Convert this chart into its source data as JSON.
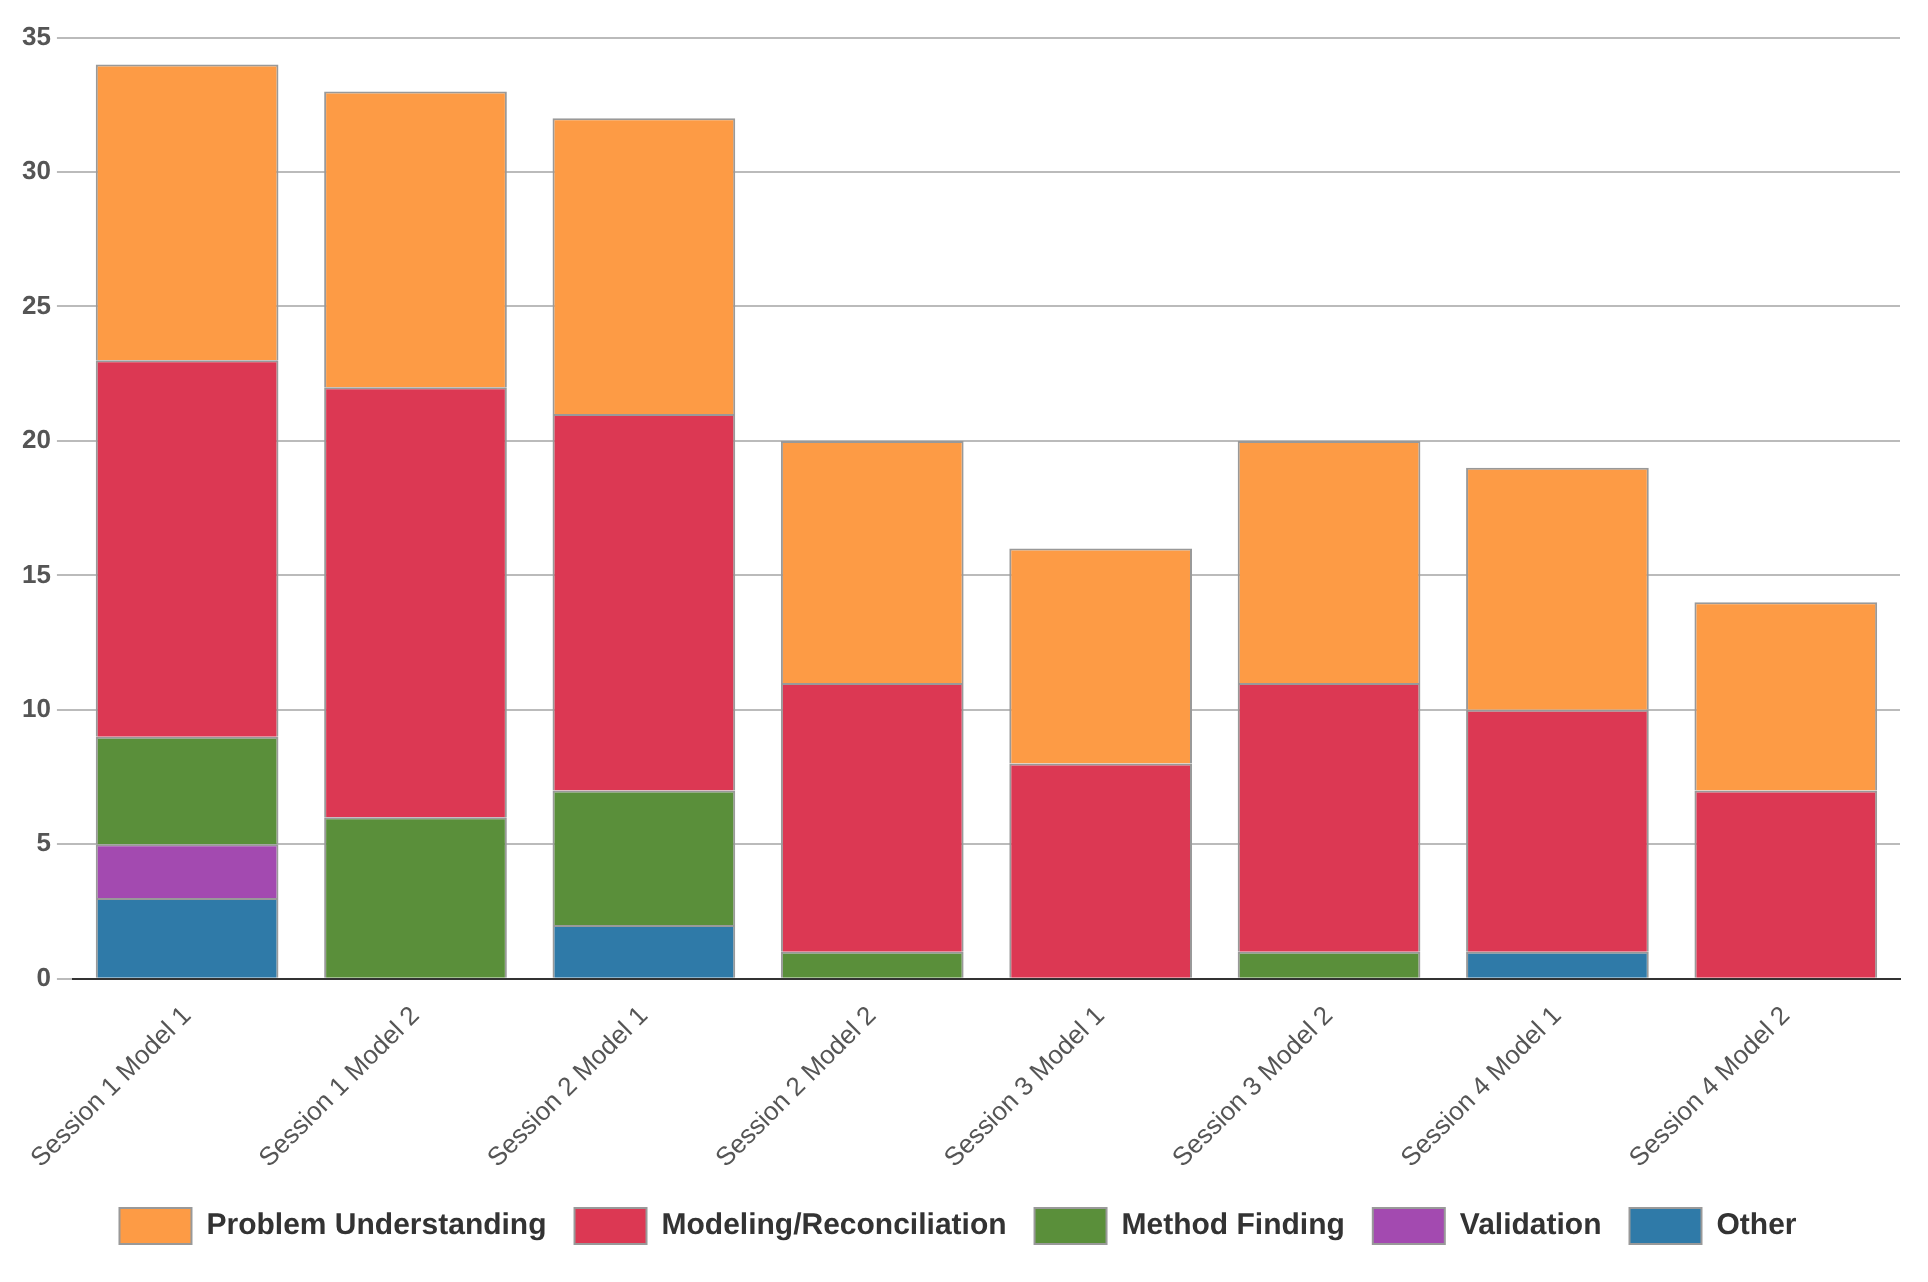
{
  "chart_data": {
    "type": "bar",
    "stacked": true,
    "categories": [
      "Session 1 Model 1",
      "Session 1 Model 2",
      "Session 2 Model 1",
      "Session 2 Model 2",
      "Session 3 Model 1",
      "Session 3 Model 2",
      "Session 4 Model 1",
      "Session 4 Model 2"
    ],
    "series": [
      {
        "name": "Other",
        "color": "#2f7aa8",
        "values": [
          3,
          0,
          2,
          0,
          0,
          0,
          1,
          0
        ]
      },
      {
        "name": "Validation",
        "color": "#a34ab0",
        "values": [
          2,
          0,
          0,
          0,
          0,
          0,
          0,
          0
        ]
      },
      {
        "name": "Method Finding",
        "color": "#5a8f3a",
        "values": [
          4,
          6,
          5,
          1,
          0,
          1,
          0,
          0
        ]
      },
      {
        "name": "Modeling/Reconciliation",
        "color": "#dc3853",
        "values": [
          14,
          16,
          14,
          10,
          8,
          10,
          9,
          7
        ]
      },
      {
        "name": "Problem Understanding",
        "color": "#fd9b45",
        "values": [
          11,
          11,
          11,
          9,
          8,
          9,
          9,
          7
        ]
      }
    ],
    "ylim": [
      0,
      35
    ],
    "yticks": [
      0,
      5,
      10,
      15,
      20,
      25,
      30,
      35
    ],
    "grid": "y",
    "legend": "bottom"
  }
}
